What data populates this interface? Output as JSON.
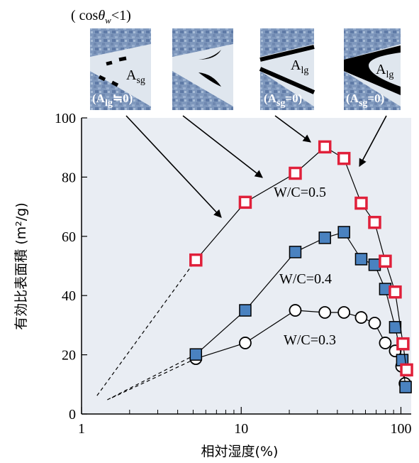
{
  "chart_data": {
    "type": "scatter-line",
    "xlabel": "相対湿度(%)",
    "ylabel": "有効比表面積 (m²/g)",
    "xlim": [
      1,
      116
    ],
    "ylim": [
      0,
      100
    ],
    "xscale": "log",
    "xticks": [
      1,
      10,
      100
    ],
    "xminorticks": [
      2,
      3,
      4,
      5,
      6,
      7,
      8,
      9,
      20,
      30,
      40,
      50,
      60,
      70,
      80,
      90
    ],
    "yticks": [
      0,
      20,
      40,
      60,
      80,
      100
    ],
    "series": [
      {
        "name": "W/C=0.5",
        "marker": "open-square",
        "color": "#e0203a",
        "x": [
          5.2,
          10.6,
          21.8,
          33.4,
          44,
          56.4,
          68.5,
          79.8,
          92.1,
          103,
          108.6
        ],
        "values": [
          52,
          71.5,
          81.3,
          90.2,
          86.3,
          71.2,
          64.7,
          51.6,
          41.2,
          23.7,
          14.9
        ],
        "dashed_origin": {
          "x": 1.25,
          "y": 6.2
        }
      },
      {
        "name": "W/C=0.4",
        "marker": "filled-square",
        "color": "#4a82c0",
        "x": [
          5.2,
          10.6,
          21.8,
          33.4,
          44,
          56.4,
          68.5,
          79.8,
          92.1,
          102,
          107
        ],
        "values": [
          20.1,
          35,
          54.7,
          59.5,
          61.4,
          52.3,
          50.4,
          42.2,
          29.3,
          18.2,
          9.1
        ],
        "dashed_origin": {
          "x": 1.45,
          "y": 4.8
        }
      },
      {
        "name": "W/C=0.3",
        "marker": "open-circle",
        "color": "#000000",
        "x": [
          5.2,
          10.6,
          21.8,
          33.4,
          44,
          56.4,
          68.5,
          79.8,
          92.1,
          101,
          106
        ],
        "values": [
          18.7,
          24,
          35,
          34.3,
          34.3,
          32.6,
          30.7,
          24,
          21.3,
          16.1,
          10.3
        ],
        "dashed_origin": {
          "x": 1.55,
          "y": 5.5
        }
      }
    ],
    "insets": {
      "caption": {
        "pre": "( cos",
        "theta": "θ",
        "sub": "w",
        "post": "<1)"
      },
      "labels": [
        {
          "main": "A",
          "sub": "sg"
        },
        {
          "pre": "(A",
          "sub": "lg",
          "post": "≒0)"
        },
        {
          "main": "A",
          "sub": "lg"
        },
        {
          "pre": "(A",
          "sub": "sg",
          "post": "=0)"
        },
        {
          "main": "A",
          "sub": "lg"
        },
        {
          "pre": "(A",
          "sub": "sg",
          "post": "=0)"
        }
      ]
    }
  }
}
